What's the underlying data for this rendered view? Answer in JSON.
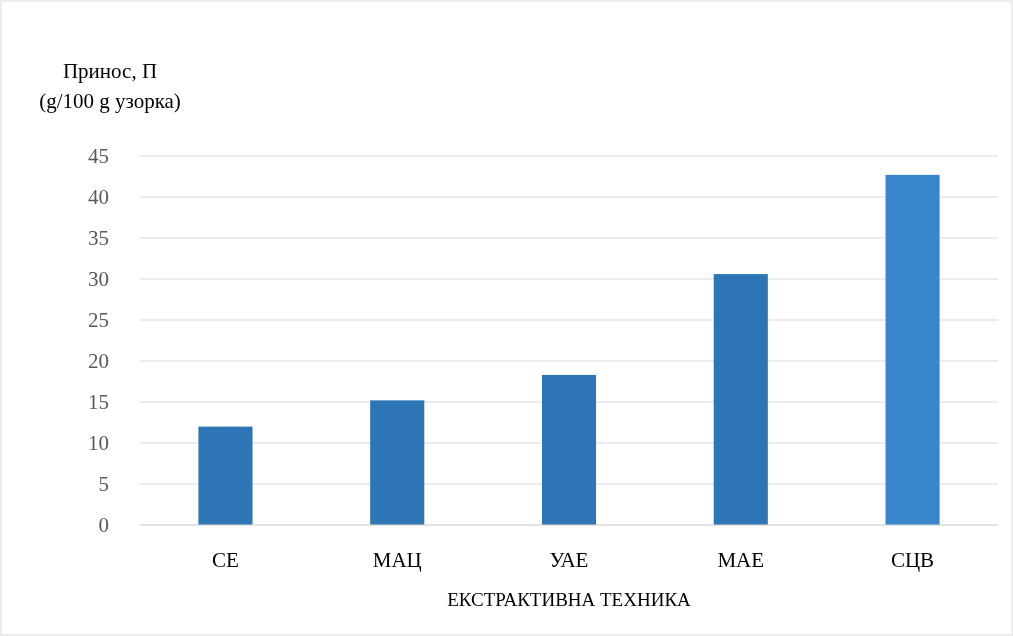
{
  "chart_data": {
    "type": "bar",
    "ylabel": "Принос, П\n(g/100 g узорка)",
    "xlabel": "ЕКСТРАКТИВНА ТЕХНИКА",
    "categories": [
      "СЕ",
      "МАЦ",
      "УАЕ",
      "МАЕ",
      "СЦВ"
    ],
    "values": [
      12.0,
      15.2,
      18.3,
      30.6,
      42.7
    ],
    "colors": [
      "#2e75b6",
      "#2e75b6",
      "#2e75b6",
      "#2e75b6",
      "#3a86cc"
    ],
    "ylim": [
      0,
      45
    ],
    "yticks": [
      0,
      5,
      10,
      15,
      20,
      25,
      30,
      35,
      40,
      45
    ],
    "grid": "y"
  }
}
